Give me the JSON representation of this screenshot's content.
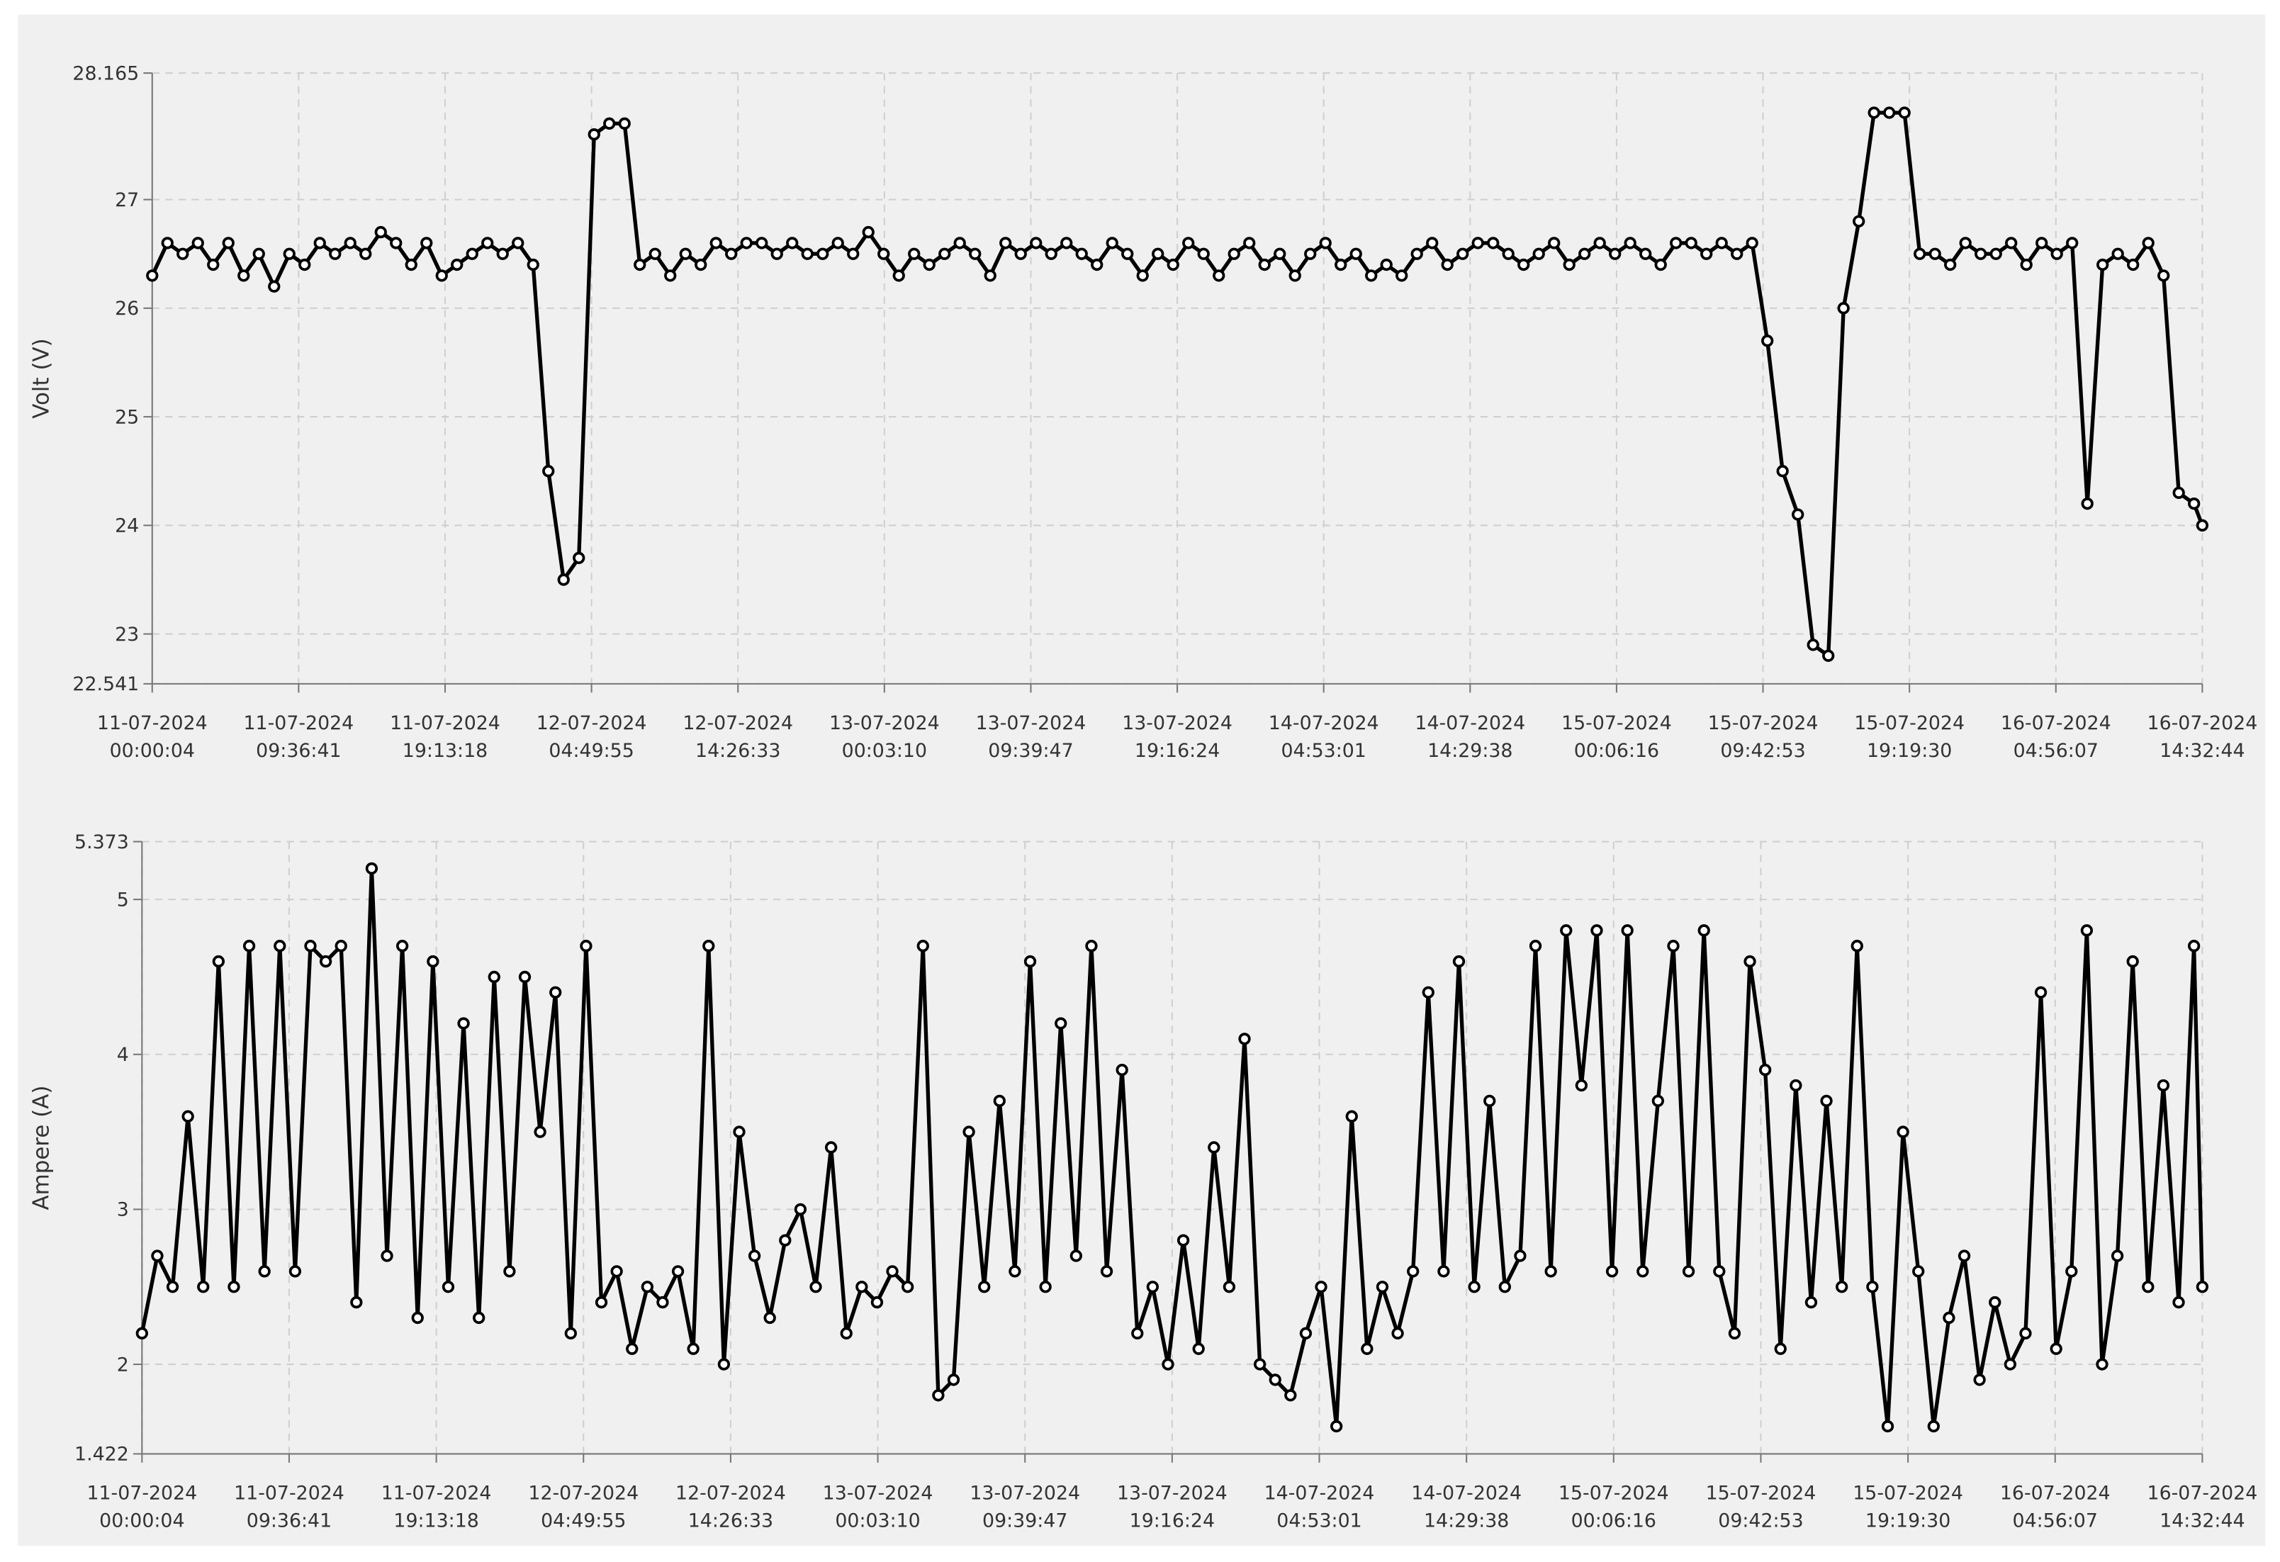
{
  "chart_data": [
    {
      "type": "line",
      "ylabel": "Volt (V)",
      "xlim": [
        "2024-07-11T00:00:04",
        "2024-07-16T14:32:44"
      ],
      "xticks": [
        {
          "value": "2024-07-11T00:00:04",
          "label": [
            "11-07-2024",
            "00:00:04"
          ]
        },
        {
          "value": "2024-07-11T09:36:41",
          "label": [
            "11-07-2024",
            "09:36:41"
          ]
        },
        {
          "value": "2024-07-11T19:13:18",
          "label": [
            "11-07-2024",
            "19:13:18"
          ]
        },
        {
          "value": "2024-07-12T04:49:55",
          "label": [
            "12-07-2024",
            "04:49:55"
          ]
        },
        {
          "value": "2024-07-12T14:26:33",
          "label": [
            "12-07-2024",
            "14:26:33"
          ]
        },
        {
          "value": "2024-07-13T00:03:10",
          "label": [
            "13-07-2024",
            "00:03:10"
          ]
        },
        {
          "value": "2024-07-13T09:39:47",
          "label": [
            "13-07-2024",
            "09:39:47"
          ]
        },
        {
          "value": "2024-07-13T19:16:24",
          "label": [
            "13-07-2024",
            "19:16:24"
          ]
        },
        {
          "value": "2024-07-14T04:53:01",
          "label": [
            "14-07-2024",
            "04:53:01"
          ]
        },
        {
          "value": "2024-07-14T14:29:38",
          "label": [
            "14-07-2024",
            "14:29:38"
          ]
        },
        {
          "value": "2024-07-15T00:06:16",
          "label": [
            "15-07-2024",
            "00:06:16"
          ]
        },
        {
          "value": "2024-07-15T09:42:53",
          "label": [
            "15-07-2024",
            "09:42:53"
          ]
        },
        {
          "value": "2024-07-15T19:19:30",
          "label": [
            "15-07-2024",
            "19:19:30"
          ]
        },
        {
          "value": "2024-07-16T04:56:07",
          "label": [
            "16-07-2024",
            "04:56:07"
          ]
        },
        {
          "value": "2024-07-16T14:32:44",
          "label": [
            "16-07-2024",
            "14:32:44"
          ]
        }
      ],
      "ylim": [
        22.541,
        28.165
      ],
      "yticks": [
        22.541,
        23,
        24,
        25,
        26,
        27,
        28.165
      ],
      "grid": true,
      "x": [
        "2024-07-11T00:00:04",
        "2024-07-11T01:00:04",
        "2024-07-11T02:00:04",
        "2024-07-11T03:00:04",
        "2024-07-11T04:00:04",
        "2024-07-11T05:00:04",
        "2024-07-11T06:00:04",
        "2024-07-11T07:00:04",
        "2024-07-11T08:00:04",
        "2024-07-11T09:00:04",
        "2024-07-11T10:00:04",
        "2024-07-11T11:00:04",
        "2024-07-11T12:00:04",
        "2024-07-11T13:00:04",
        "2024-07-11T14:00:04",
        "2024-07-11T15:00:04",
        "2024-07-11T16:00:04",
        "2024-07-11T17:00:04",
        "2024-07-11T18:00:04",
        "2024-07-11T19:00:04",
        "2024-07-11T20:00:04",
        "2024-07-11T21:00:04",
        "2024-07-11T22:00:04",
        "2024-07-11T23:00:04",
        "2024-07-12T00:00:04",
        "2024-07-12T01:00:04",
        "2024-07-12T02:00:04",
        "2024-07-12T03:00:04",
        "2024-07-12T04:00:04",
        "2024-07-12T05:00:04",
        "2024-07-12T06:00:04",
        "2024-07-12T07:00:04",
        "2024-07-12T08:00:04",
        "2024-07-12T09:00:04",
        "2024-07-12T10:00:04",
        "2024-07-12T11:00:04",
        "2024-07-12T12:00:04",
        "2024-07-12T13:00:04",
        "2024-07-12T14:00:04",
        "2024-07-12T15:00:04",
        "2024-07-12T16:00:04",
        "2024-07-12T17:00:04",
        "2024-07-12T18:00:04",
        "2024-07-12T19:00:04",
        "2024-07-12T20:00:04",
        "2024-07-12T21:00:04",
        "2024-07-12T22:00:04",
        "2024-07-12T23:00:04",
        "2024-07-13T00:00:04",
        "2024-07-13T01:00:04",
        "2024-07-13T02:00:04",
        "2024-07-13T03:00:04",
        "2024-07-13T04:00:04",
        "2024-07-13T05:00:04",
        "2024-07-13T06:00:04",
        "2024-07-13T07:00:04",
        "2024-07-13T08:00:04",
        "2024-07-13T09:00:04",
        "2024-07-13T10:00:04",
        "2024-07-13T11:00:04",
        "2024-07-13T12:00:04",
        "2024-07-13T13:00:04",
        "2024-07-13T14:00:04",
        "2024-07-13T15:00:04",
        "2024-07-13T16:00:04",
        "2024-07-13T17:00:04",
        "2024-07-13T18:00:04",
        "2024-07-13T19:00:04",
        "2024-07-13T20:00:04",
        "2024-07-13T21:00:04",
        "2024-07-13T22:00:04",
        "2024-07-13T23:00:04",
        "2024-07-14T00:00:04",
        "2024-07-14T01:00:04",
        "2024-07-14T02:00:04",
        "2024-07-14T03:00:04",
        "2024-07-14T04:00:04",
        "2024-07-14T05:00:04",
        "2024-07-14T06:00:04",
        "2024-07-14T07:00:04",
        "2024-07-14T08:00:04",
        "2024-07-14T09:00:04",
        "2024-07-14T10:00:04",
        "2024-07-14T11:00:04",
        "2024-07-14T12:00:04",
        "2024-07-14T13:00:04",
        "2024-07-14T14:00:04",
        "2024-07-14T15:00:04",
        "2024-07-14T16:00:04",
        "2024-07-14T17:00:04",
        "2024-07-14T18:00:04",
        "2024-07-14T19:00:04",
        "2024-07-14T20:00:04",
        "2024-07-14T21:00:04",
        "2024-07-14T22:00:04",
        "2024-07-14T23:00:04",
        "2024-07-15T00:00:04",
        "2024-07-15T01:00:04",
        "2024-07-15T02:00:04",
        "2024-07-15T03:00:04",
        "2024-07-15T04:00:04",
        "2024-07-15T05:00:04",
        "2024-07-15T06:00:04",
        "2024-07-15T07:00:04",
        "2024-07-15T08:00:04",
        "2024-07-15T09:00:04",
        "2024-07-15T10:00:04",
        "2024-07-15T11:00:04",
        "2024-07-15T12:00:04",
        "2024-07-15T13:00:04",
        "2024-07-15T14:00:04",
        "2024-07-15T15:00:04",
        "2024-07-15T16:00:04",
        "2024-07-15T17:00:04",
        "2024-07-15T18:00:04",
        "2024-07-15T19:00:04",
        "2024-07-15T20:00:04",
        "2024-07-15T21:00:04",
        "2024-07-15T22:00:04",
        "2024-07-15T23:00:04",
        "2024-07-16T00:00:04",
        "2024-07-16T01:00:04",
        "2024-07-16T02:00:04",
        "2024-07-16T03:00:04",
        "2024-07-16T04:00:04",
        "2024-07-16T05:00:04",
        "2024-07-16T06:00:04",
        "2024-07-16T07:00:04",
        "2024-07-16T08:00:04",
        "2024-07-16T09:00:04",
        "2024-07-16T10:00:04",
        "2024-07-16T11:00:04",
        "2024-07-16T12:00:04",
        "2024-07-16T13:00:04",
        "2024-07-16T14:00:04",
        "2024-07-16T14:32:44"
      ],
      "series": [
        {
          "name": "Volt",
          "color": "#000000",
          "values": [
            26.3,
            26.6,
            26.5,
            26.6,
            26.4,
            26.6,
            26.3,
            26.5,
            26.2,
            26.5,
            26.4,
            26.6,
            26.5,
            26.6,
            26.5,
            26.7,
            26.6,
            26.4,
            26.6,
            26.3,
            26.4,
            26.5,
            26.6,
            26.5,
            26.6,
            26.4,
            24.5,
            23.5,
            23.7,
            27.6,
            27.7,
            27.7,
            26.4,
            26.5,
            26.3,
            26.5,
            26.4,
            26.6,
            26.5,
            26.6,
            26.6,
            26.5,
            26.6,
            26.5,
            26.5,
            26.6,
            26.5,
            26.7,
            26.5,
            26.3,
            26.5,
            26.4,
            26.5,
            26.6,
            26.5,
            26.3,
            26.6,
            26.5,
            26.6,
            26.5,
            26.6,
            26.5,
            26.4,
            26.6,
            26.5,
            26.3,
            26.5,
            26.4,
            26.6,
            26.5,
            26.3,
            26.5,
            26.6,
            26.4,
            26.5,
            26.3,
            26.5,
            26.6,
            26.4,
            26.5,
            26.3,
            26.4,
            26.3,
            26.5,
            26.6,
            26.4,
            26.5,
            26.6,
            26.6,
            26.5,
            26.4,
            26.5,
            26.6,
            26.4,
            26.5,
            26.6,
            26.5,
            26.6,
            26.5,
            26.4,
            26.6,
            26.6,
            26.5,
            26.6,
            26.5,
            26.6,
            25.7,
            24.5,
            24.1,
            22.9,
            22.8,
            26.0,
            26.8,
            27.8,
            27.8,
            27.8,
            26.5,
            26.5,
            26.4,
            26.6,
            26.5,
            26.5,
            26.6,
            26.4,
            26.6,
            26.5,
            26.6,
            24.2,
            26.4,
            26.5,
            26.4,
            26.6,
            26.3,
            24.3,
            24.2,
            24.0
          ]
        }
      ]
    },
    {
      "type": "line",
      "ylabel": "Ampere (A)",
      "xlim": [
        "2024-07-11T00:00:04",
        "2024-07-16T14:32:44"
      ],
      "xticks": [
        {
          "value": "2024-07-11T00:00:04",
          "label": [
            "11-07-2024",
            "00:00:04"
          ]
        },
        {
          "value": "2024-07-11T09:36:41",
          "label": [
            "11-07-2024",
            "09:36:41"
          ]
        },
        {
          "value": "2024-07-11T19:13:18",
          "label": [
            "11-07-2024",
            "19:13:18"
          ]
        },
        {
          "value": "2024-07-12T04:49:55",
          "label": [
            "12-07-2024",
            "04:49:55"
          ]
        },
        {
          "value": "2024-07-12T14:26:33",
          "label": [
            "12-07-2024",
            "14:26:33"
          ]
        },
        {
          "value": "2024-07-13T00:03:10",
          "label": [
            "13-07-2024",
            "00:03:10"
          ]
        },
        {
          "value": "2024-07-13T09:39:47",
          "label": [
            "13-07-2024",
            "09:39:47"
          ]
        },
        {
          "value": "2024-07-13T19:16:24",
          "label": [
            "13-07-2024",
            "19:16:24"
          ]
        },
        {
          "value": "2024-07-14T04:53:01",
          "label": [
            "14-07-2024",
            "04:53:01"
          ]
        },
        {
          "value": "2024-07-14T14:29:38",
          "label": [
            "14-07-2024",
            "14:29:38"
          ]
        },
        {
          "value": "2024-07-15T00:06:16",
          "label": [
            "15-07-2024",
            "00:06:16"
          ]
        },
        {
          "value": "2024-07-15T09:42:53",
          "label": [
            "15-07-2024",
            "09:42:53"
          ]
        },
        {
          "value": "2024-07-15T19:19:30",
          "label": [
            "15-07-2024",
            "19:19:30"
          ]
        },
        {
          "value": "2024-07-16T04:56:07",
          "label": [
            "16-07-2024",
            "04:56:07"
          ]
        },
        {
          "value": "2024-07-16T14:32:44",
          "label": [
            "16-07-2024",
            "14:32:44"
          ]
        }
      ],
      "ylim": [
        1.422,
        5.373
      ],
      "yticks": [
        1.422,
        2,
        3,
        4,
        5,
        5.373
      ],
      "grid": true,
      "x": [
        "2024-07-11T00:00:04",
        "2024-07-11T01:00:04",
        "2024-07-11T02:00:04",
        "2024-07-11T03:00:04",
        "2024-07-11T04:00:04",
        "2024-07-11T05:00:04",
        "2024-07-11T06:00:04",
        "2024-07-11T07:00:04",
        "2024-07-11T08:00:04",
        "2024-07-11T09:00:04",
        "2024-07-11T10:00:04",
        "2024-07-11T11:00:04",
        "2024-07-11T12:00:04",
        "2024-07-11T13:00:04",
        "2024-07-11T14:00:04",
        "2024-07-11T15:00:04",
        "2024-07-11T16:00:04",
        "2024-07-11T17:00:04",
        "2024-07-11T18:00:04",
        "2024-07-11T19:00:04",
        "2024-07-11T20:00:04",
        "2024-07-11T21:00:04",
        "2024-07-11T22:00:04",
        "2024-07-11T23:00:04",
        "2024-07-12T00:00:04",
        "2024-07-12T01:00:04",
        "2024-07-12T02:00:04",
        "2024-07-12T03:00:04",
        "2024-07-12T04:00:04",
        "2024-07-12T05:00:04",
        "2024-07-12T06:00:04",
        "2024-07-12T07:00:04",
        "2024-07-12T08:00:04",
        "2024-07-12T09:00:04",
        "2024-07-12T10:00:04",
        "2024-07-12T11:00:04",
        "2024-07-12T12:00:04",
        "2024-07-12T13:00:04",
        "2024-07-12T14:00:04",
        "2024-07-12T15:00:04",
        "2024-07-12T16:00:04",
        "2024-07-12T17:00:04",
        "2024-07-12T18:00:04",
        "2024-07-12T19:00:04",
        "2024-07-12T20:00:04",
        "2024-07-12T21:00:04",
        "2024-07-12T22:00:04",
        "2024-07-12T23:00:04",
        "2024-07-13T00:00:04",
        "2024-07-13T01:00:04",
        "2024-07-13T02:00:04",
        "2024-07-13T03:00:04",
        "2024-07-13T04:00:04",
        "2024-07-13T05:00:04",
        "2024-07-13T06:00:04",
        "2024-07-13T07:00:04",
        "2024-07-13T08:00:04",
        "2024-07-13T09:00:04",
        "2024-07-13T10:00:04",
        "2024-07-13T11:00:04",
        "2024-07-13T12:00:04",
        "2024-07-13T13:00:04",
        "2024-07-13T14:00:04",
        "2024-07-13T15:00:04",
        "2024-07-13T16:00:04",
        "2024-07-13T17:00:04",
        "2024-07-13T18:00:04",
        "2024-07-13T19:00:04",
        "2024-07-13T20:00:04",
        "2024-07-13T21:00:04",
        "2024-07-13T22:00:04",
        "2024-07-13T23:00:04",
        "2024-07-14T00:00:04",
        "2024-07-14T01:00:04",
        "2024-07-14T02:00:04",
        "2024-07-14T03:00:04",
        "2024-07-14T04:00:04",
        "2024-07-14T05:00:04",
        "2024-07-14T06:00:04",
        "2024-07-14T07:00:04",
        "2024-07-14T08:00:04",
        "2024-07-14T09:00:04",
        "2024-07-14T10:00:04",
        "2024-07-14T11:00:04",
        "2024-07-14T12:00:04",
        "2024-07-14T13:00:04",
        "2024-07-14T14:00:04",
        "2024-07-14T15:00:04",
        "2024-07-14T16:00:04",
        "2024-07-14T17:00:04",
        "2024-07-14T18:00:04",
        "2024-07-14T19:00:04",
        "2024-07-14T20:00:04",
        "2024-07-14T21:00:04",
        "2024-07-14T22:00:04",
        "2024-07-14T23:00:04",
        "2024-07-15T00:00:04",
        "2024-07-15T01:00:04",
        "2024-07-15T02:00:04",
        "2024-07-15T03:00:04",
        "2024-07-15T04:00:04",
        "2024-07-15T05:00:04",
        "2024-07-15T06:00:04",
        "2024-07-15T07:00:04",
        "2024-07-15T08:00:04",
        "2024-07-15T09:00:04",
        "2024-07-15T10:00:04",
        "2024-07-15T11:00:04",
        "2024-07-15T12:00:04",
        "2024-07-15T13:00:04",
        "2024-07-15T14:00:04",
        "2024-07-15T15:00:04",
        "2024-07-15T16:00:04",
        "2024-07-15T17:00:04",
        "2024-07-15T18:00:04",
        "2024-07-15T19:00:04",
        "2024-07-15T20:00:04",
        "2024-07-15T21:00:04",
        "2024-07-15T22:00:04",
        "2024-07-15T23:00:04",
        "2024-07-16T00:00:04",
        "2024-07-16T01:00:04",
        "2024-07-16T02:00:04",
        "2024-07-16T03:00:04",
        "2024-07-16T04:00:04",
        "2024-07-16T05:00:04",
        "2024-07-16T06:00:04",
        "2024-07-16T07:00:04",
        "2024-07-16T08:00:04",
        "2024-07-16T09:00:04",
        "2024-07-16T10:00:04",
        "2024-07-16T11:00:04",
        "2024-07-16T12:00:04",
        "2024-07-16T13:00:04",
        "2024-07-16T14:00:04",
        "2024-07-16T14:32:44"
      ],
      "series": [
        {
          "name": "Ampere",
          "color": "#000000",
          "values": [
            2.2,
            2.7,
            2.5,
            3.6,
            2.5,
            4.6,
            2.5,
            4.7,
            2.6,
            4.7,
            2.6,
            4.7,
            4.6,
            4.7,
            2.4,
            5.2,
            2.7,
            4.7,
            2.3,
            4.6,
            2.5,
            4.2,
            2.3,
            4.5,
            2.6,
            4.5,
            3.5,
            4.4,
            2.2,
            4.7,
            2.4,
            2.6,
            2.1,
            2.5,
            2.4,
            2.6,
            2.1,
            4.7,
            2.0,
            3.5,
            2.7,
            2.3,
            2.8,
            3.0,
            2.5,
            3.4,
            2.2,
            2.5,
            2.4,
            2.6,
            2.5,
            4.7,
            1.8,
            1.9,
            3.5,
            2.5,
            3.7,
            2.6,
            4.6,
            2.5,
            4.2,
            2.7,
            4.7,
            2.6,
            3.9,
            2.2,
            2.5,
            2.0,
            2.8,
            2.1,
            3.4,
            2.5,
            4.1,
            2.0,
            1.9,
            1.8,
            2.2,
            2.5,
            1.6,
            3.6,
            2.1,
            2.5,
            2.2,
            2.6,
            4.4,
            2.6,
            4.6,
            2.5,
            3.7,
            2.5,
            2.7,
            4.7,
            2.6,
            4.8,
            3.8,
            4.8,
            2.6,
            4.8,
            2.6,
            3.7,
            4.7,
            2.6,
            4.8,
            2.6,
            2.2,
            4.6,
            3.9,
            2.1,
            3.8,
            2.4,
            3.7,
            2.5,
            4.7,
            2.5,
            1.6,
            3.5,
            2.6,
            1.6,
            2.3,
            2.7,
            1.9,
            2.4,
            2.0,
            2.2,
            4.4,
            2.1,
            2.6,
            4.8,
            2.0,
            2.7,
            4.6,
            2.5,
            3.8,
            2.4,
            4.7,
            2.5
          ]
        }
      ]
    }
  ]
}
